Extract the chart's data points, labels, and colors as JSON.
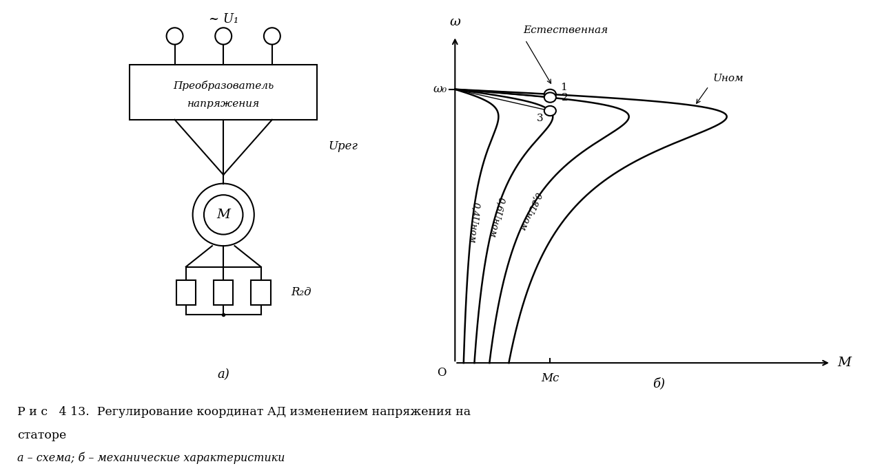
{
  "fig_width": 12.64,
  "fig_height": 6.9,
  "dpi": 100,
  "background_color": "#ffffff",
  "caption_line1": "Р и с   4 13.  Регулирование координат АД изменением напряжения на",
  "caption_line2": "статоре",
  "caption_line3": "а – схема; б – механические характеристики",
  "label_U1": "~ U₁",
  "label_Ureg": "Uрег",
  "label_M": "М",
  "label_R2d": "R₂д",
  "label_omega": "ω",
  "label_omega0": "ω₀",
  "label_O": "O",
  "label_Mc": "Mс",
  "label_natural": "Естественная",
  "label_Unom": "Uном",
  "label_a": "а)",
  "label_b": "б)",
  "label_preb1": "Преобразователь",
  "label_preb2": "напряжения",
  "label_M_motor": "М",
  "curve_labels": [
    "0,4Uном",
    "0,6Uном",
    "0,8Uном"
  ],
  "point_labels": [
    "1",
    "2",
    "3"
  ]
}
